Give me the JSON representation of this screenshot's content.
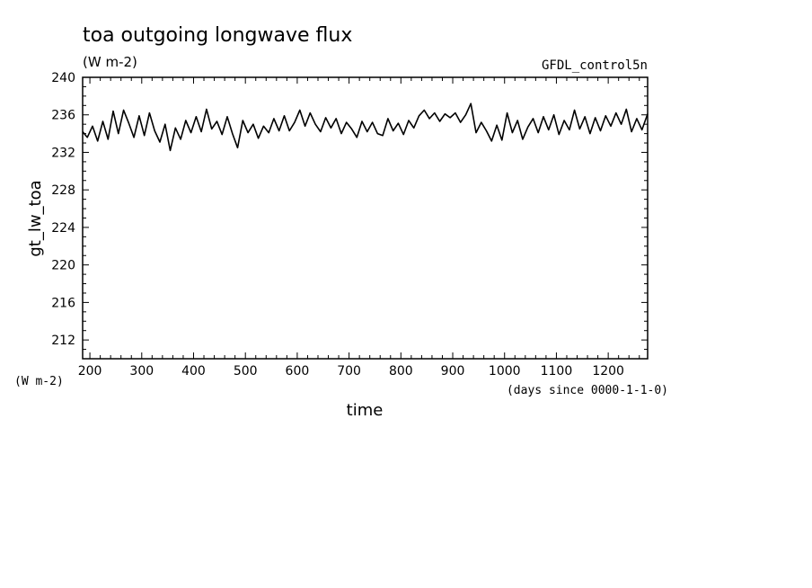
{
  "chart_data": {
    "type": "line",
    "title": "toa outgoing longwave flux",
    "units": "(W m-2)",
    "dataset": "GFDL_control5n",
    "xlabel": "time",
    "xunits": "(days since 0000-1-1-0)",
    "ylabel": "gt_lw_toa",
    "yunits": "(W m-2)",
    "xlim": [
      186,
      1276
    ],
    "ylim": [
      210,
      240
    ],
    "xticks": [
      "200",
      "300",
      "400",
      "500",
      "600",
      "700",
      "800",
      "900",
      "1000",
      "1100",
      "1200"
    ],
    "yticks": [
      "212",
      "216",
      "220",
      "224",
      "228",
      "232",
      "236",
      "240"
    ],
    "grid": false,
    "series": [
      {
        "color": "#000000",
        "x": [
          186,
          195,
          205,
          215,
          225,
          235,
          245,
          255,
          265,
          275,
          285,
          295,
          305,
          315,
          325,
          335,
          345,
          355,
          365,
          375,
          385,
          395,
          405,
          415,
          425,
          435,
          445,
          455,
          465,
          475,
          485,
          495,
          505,
          515,
          525,
          535,
          545,
          555,
          565,
          575,
          585,
          595,
          605,
          615,
          625,
          635,
          645,
          655,
          665,
          675,
          685,
          695,
          705,
          715,
          725,
          735,
          745,
          755,
          765,
          775,
          785,
          795,
          805,
          815,
          825,
          835,
          845,
          855,
          865,
          875,
          885,
          895,
          905,
          915,
          925,
          935,
          945,
          955,
          965,
          975,
          985,
          995,
          1005,
          1015,
          1025,
          1035,
          1045,
          1055,
          1065,
          1075,
          1085,
          1095,
          1105,
          1115,
          1125,
          1135,
          1145,
          1155,
          1165,
          1175,
          1185,
          1195,
          1205,
          1215,
          1225,
          1235,
          1245,
          1255,
          1265,
          1276
        ],
        "values": [
          234.2,
          233.6,
          234.8,
          233.2,
          235.3,
          233.4,
          236.4,
          234.0,
          236.5,
          235.1,
          233.6,
          235.9,
          233.8,
          236.2,
          234.3,
          233.1,
          235.0,
          232.2,
          234.6,
          233.4,
          235.4,
          234.1,
          235.8,
          234.2,
          236.6,
          234.5,
          235.3,
          233.9,
          235.8,
          234.0,
          232.5,
          235.4,
          234.1,
          235.0,
          233.5,
          234.8,
          234.1,
          235.6,
          234.3,
          235.9,
          234.3,
          235.2,
          236.5,
          234.8,
          236.2,
          235.0,
          234.2,
          235.7,
          234.6,
          235.6,
          234.0,
          235.2,
          234.5,
          233.6,
          235.3,
          234.2,
          235.2,
          234.0,
          233.8,
          235.6,
          234.3,
          235.1,
          233.9,
          235.4,
          234.6,
          235.9,
          236.5,
          235.6,
          236.2,
          235.3,
          236.1,
          235.7,
          236.2,
          235.2,
          236.0,
          237.2,
          234.1,
          235.2,
          234.3,
          233.2,
          234.9,
          233.3,
          236.2,
          234.1,
          235.4,
          233.4,
          234.7,
          235.6,
          234.1,
          235.8,
          234.4,
          236.0,
          233.9,
          235.4,
          234.4,
          236.5,
          234.5,
          235.8,
          234.0,
          235.7,
          234.3,
          235.9,
          234.8,
          236.2,
          235.0,
          236.6,
          234.2,
          235.6,
          234.4,
          236.1
        ]
      }
    ]
  }
}
